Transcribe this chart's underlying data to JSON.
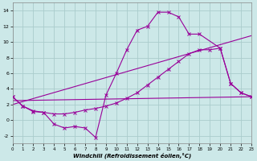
{
  "xlabel": "Windchill (Refroidissement éolien,°C)",
  "bg_color": "#cce8e8",
  "grid_color": "#aacccc",
  "line_color": "#990099",
  "xlim": [
    0,
    23
  ],
  "ylim": [
    -3,
    15
  ],
  "xticks": [
    0,
    1,
    2,
    3,
    4,
    5,
    6,
    7,
    8,
    9,
    10,
    11,
    12,
    13,
    14,
    15,
    16,
    17,
    18,
    19,
    20,
    21,
    22,
    23
  ],
  "yticks": [
    -2,
    0,
    2,
    4,
    6,
    8,
    10,
    12,
    14
  ],
  "curve1_x": [
    0,
    1,
    2,
    3,
    4,
    5,
    6,
    7,
    8,
    9,
    10,
    11,
    12,
    13,
    14,
    15,
    16,
    17,
    18,
    20,
    21,
    22,
    23
  ],
  "curve1_y": [
    3.0,
    1.8,
    1.1,
    1.0,
    -0.5,
    -1.0,
    -0.8,
    -1.0,
    -2.2,
    3.2,
    6.0,
    9.0,
    11.5,
    12.0,
    13.8,
    13.8,
    13.2,
    11.0,
    11.0,
    9.2,
    4.7,
    3.5,
    3.0
  ],
  "curve2_x": [
    0,
    1,
    2,
    3,
    4,
    5,
    6,
    7,
    8,
    9,
    10,
    11,
    12,
    13,
    14,
    15,
    16,
    17,
    18,
    19,
    20,
    21,
    22,
    23
  ],
  "curve2_y": [
    3.0,
    1.8,
    1.2,
    1.0,
    0.8,
    0.8,
    1.0,
    1.3,
    1.5,
    1.8,
    2.2,
    2.8,
    3.5,
    4.5,
    5.5,
    6.5,
    7.5,
    8.5,
    9.0,
    9.0,
    9.2,
    4.7,
    3.5,
    3.0
  ],
  "line3_x": [
    0,
    23
  ],
  "line3_y": [
    2.0,
    10.8
  ],
  "line4_x": [
    0,
    23
  ],
  "line4_y": [
    2.5,
    3.0
  ]
}
